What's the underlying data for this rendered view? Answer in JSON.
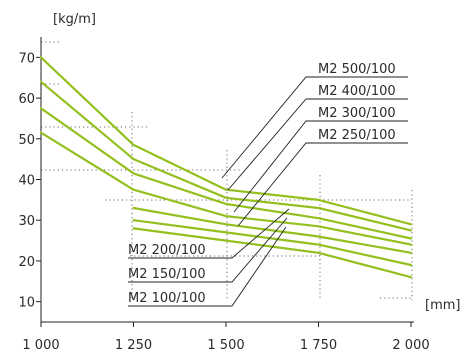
{
  "chart_data": {
    "type": "line",
    "title": "",
    "xlabel": "",
    "ylabel": "",
    "x_unit": "[mm]",
    "y_unit": "[kg/m]",
    "x": [
      1000,
      1250,
      1500,
      1750,
      2000
    ],
    "x_tick_labels": [
      "1 000",
      "1 250",
      "1 500",
      "1 750",
      "2 000"
    ],
    "y_ticks": [
      10,
      20,
      30,
      40,
      50,
      60,
      70
    ],
    "y_tick_labels": [
      "10",
      "20",
      "30",
      "40",
      "50",
      "60",
      "70"
    ],
    "xlim": [
      1000,
      2000
    ],
    "ylim": [
      5,
      75
    ],
    "grid": "dotted",
    "line_color": "#93c01f",
    "series": [
      {
        "name": "M2 500/100",
        "values": [
          70.0,
          48.5,
          37.5,
          35.0,
          29.0
        ]
      },
      {
        "name": "M2 400/100",
        "values": [
          64.0,
          45.0,
          35.5,
          33.0,
          27.5
        ]
      },
      {
        "name": "M2 300/100",
        "values": [
          57.5,
          41.5,
          34.0,
          30.5,
          25.5
        ]
      },
      {
        "name": "M2 250/100",
        "values": [
          51.5,
          37.5,
          31.0,
          28.5,
          24.0
        ]
      },
      {
        "name": "M2 200/100",
        "values": [
          null,
          33.0,
          29.0,
          26.0,
          22.0
        ]
      },
      {
        "name": "M2 150/100",
        "values": [
          null,
          30.0,
          27.0,
          24.0,
          19.0
        ]
      },
      {
        "name": "M2 100/100",
        "values": [
          null,
          28.0,
          25.0,
          22.0,
          16.0
        ]
      }
    ]
  }
}
